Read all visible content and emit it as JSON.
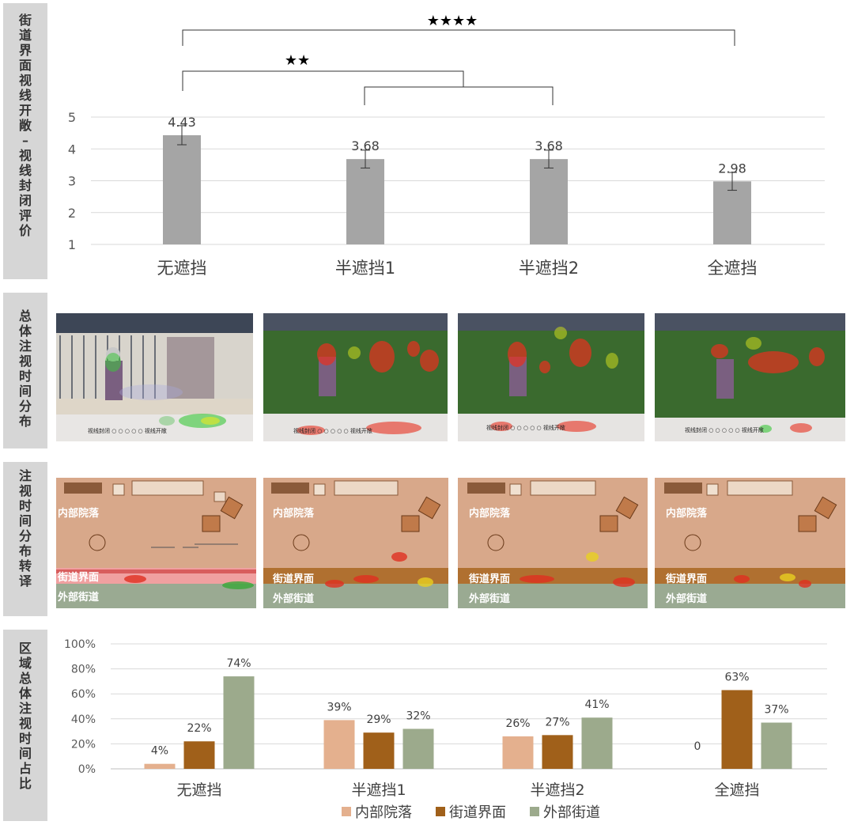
{
  "row_labels": [
    "街道界面视线开敞–视线封闭评价",
    "总体注视时间分布",
    "注视时间分布转译",
    "区域总体注视时间占比"
  ],
  "significance": [
    "★★★★",
    "★★"
  ],
  "rating_scale": {
    "left": "视线封闭",
    "right": "视线开敞",
    "ticks": [
      "1",
      "2",
      "3",
      "4",
      "5"
    ]
  },
  "plan_labels": {
    "inner": "内部院落",
    "interface": "街道界面",
    "outer": "外部街道"
  },
  "colors": {
    "bar_gray": "#a5a5a5",
    "inner": "#e4b08e",
    "interface": "#a0601a",
    "outer": "#9caa8c"
  },
  "chart_data": [
    {
      "type": "bar",
      "categories": [
        "无遮挡",
        "半遮挡1",
        "半遮挡2",
        "全遮挡"
      ],
      "values": [
        4.43,
        3.68,
        3.68,
        2.98
      ],
      "data_labels": [
        "4.43",
        "3.68",
        "3.68",
        "2.98"
      ],
      "error": [
        0.3,
        0.28,
        0.28,
        0.28
      ],
      "ylim": [
        1,
        5
      ],
      "yticks": [
        "1",
        "2",
        "3",
        "4",
        "5"
      ],
      "grid": true
    },
    {
      "type": "bar",
      "categories": [
        "无遮挡",
        "半遮挡1",
        "半遮挡2",
        "全遮挡"
      ],
      "series": [
        {
          "name": "内部院落",
          "values": [
            4,
            39,
            26,
            0
          ],
          "labels": [
            "4%",
            "39%",
            "26%",
            "0"
          ]
        },
        {
          "name": "街道界面",
          "values": [
            22,
            29,
            27,
            63
          ],
          "labels": [
            "22%",
            "29%",
            "27%",
            "63%"
          ]
        },
        {
          "name": "外部街道",
          "values": [
            74,
            32,
            41,
            37
          ],
          "labels": [
            "74%",
            "32%",
            "41%",
            "37%"
          ]
        }
      ],
      "ylim": [
        0,
        100
      ],
      "yticks": [
        "0%",
        "20%",
        "40%",
        "60%",
        "80%",
        "100%"
      ],
      "legend": "bottom",
      "grid": true
    }
  ]
}
